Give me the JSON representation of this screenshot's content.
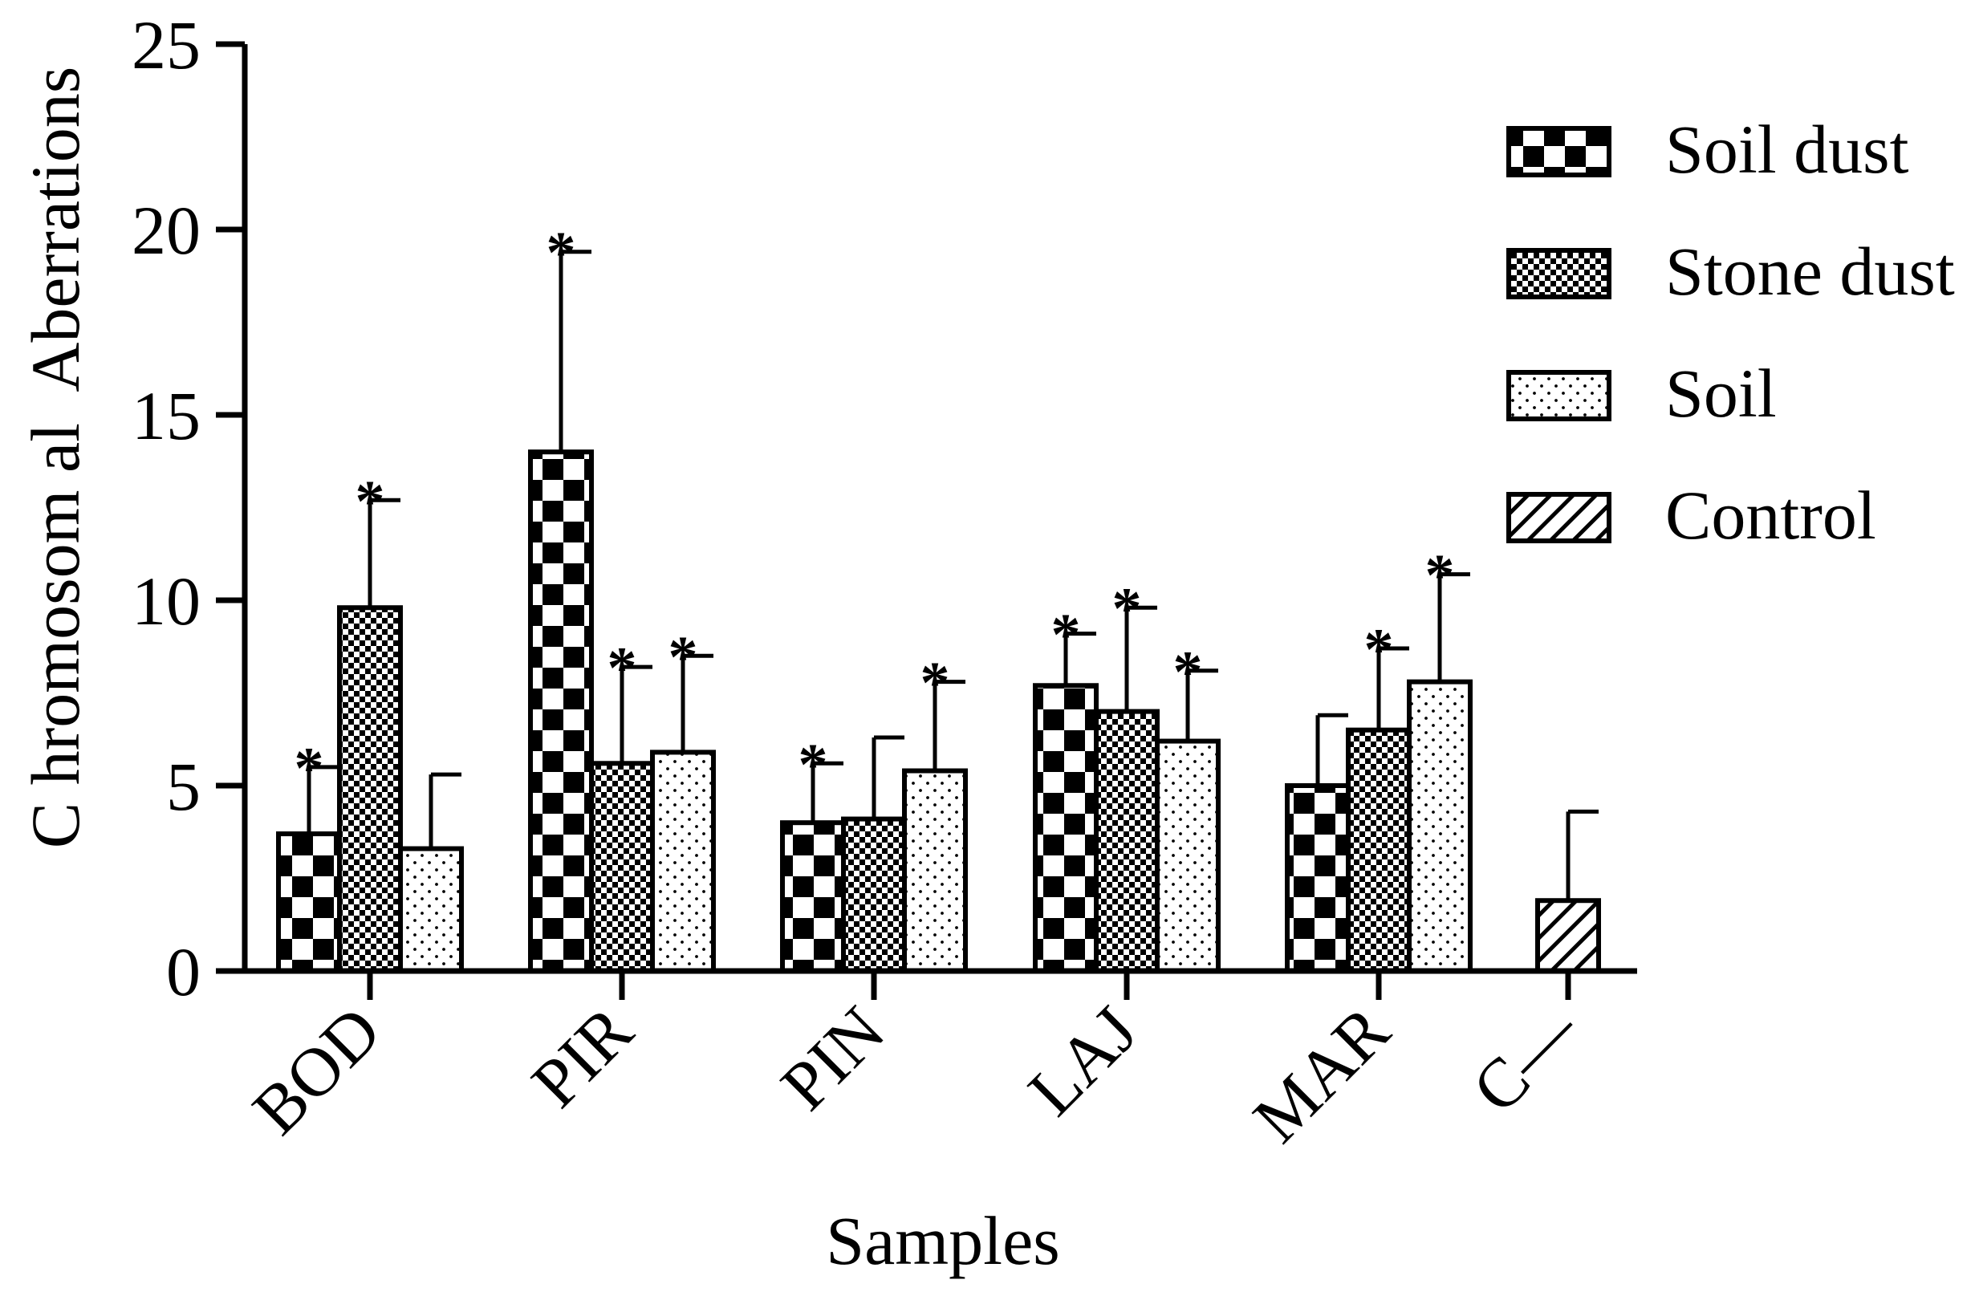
{
  "chart_data": {
    "type": "bar",
    "title": "",
    "xlabel": "Samples",
    "ylabel": "C hromosom al  Aberrations",
    "ylim": [
      0,
      25
    ],
    "yticks": [
      "0",
      "5",
      "10",
      "15",
      "20",
      "25"
    ],
    "categories": [
      "BOD",
      "PIR",
      "PIN",
      "LAJ",
      "MAR",
      "C—"
    ],
    "legend_position": "top-right",
    "series": [
      {
        "name": "Soil dust",
        "pattern": "checker",
        "values": [
          3.7,
          14.0,
          4.0,
          7.7,
          5.0,
          null
        ],
        "errors": [
          1.8,
          5.4,
          1.6,
          1.4,
          1.9,
          null
        ],
        "significant": [
          true,
          true,
          true,
          true,
          false,
          false
        ]
      },
      {
        "name": "Stone dust",
        "pattern": "fine-checker",
        "values": [
          9.8,
          5.6,
          4.1,
          7.0,
          6.5,
          null
        ],
        "errors": [
          2.9,
          2.6,
          2.2,
          2.8,
          2.2,
          null
        ],
        "significant": [
          true,
          true,
          false,
          true,
          true,
          false
        ]
      },
      {
        "name": "Soil",
        "pattern": "dots",
        "values": [
          3.3,
          5.9,
          5.4,
          6.2,
          7.8,
          null
        ],
        "errors": [
          2.0,
          2.6,
          2.4,
          1.9,
          2.9,
          null
        ],
        "significant": [
          false,
          true,
          true,
          true,
          true,
          false
        ]
      },
      {
        "name": "Control",
        "pattern": "hatch",
        "values": [
          null,
          null,
          null,
          null,
          null,
          1.9
        ],
        "errors": [
          null,
          null,
          null,
          null,
          null,
          2.4
        ],
        "significant": [
          false,
          false,
          false,
          false,
          false,
          false
        ]
      }
    ],
    "significance_marker": "*",
    "colors": {
      "bar_stroke": "#000000",
      "fill": "#000000",
      "background": "#ffffff"
    }
  }
}
